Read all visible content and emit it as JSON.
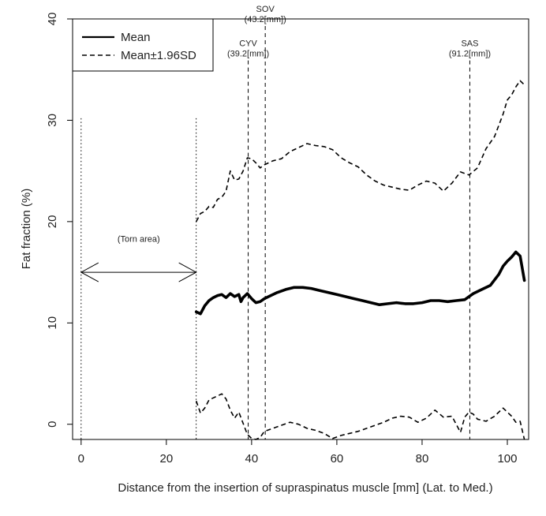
{
  "chart_data": {
    "type": "line",
    "title": "",
    "xlabel": "Distance from the insertion of supraspinatus muscle [mm] (Lat. to Med.)",
    "ylabel": "Fat fraction (%)",
    "xlim": [
      -2,
      105
    ],
    "ylim": [
      -1.5,
      40
    ],
    "xticks": [
      0,
      20,
      40,
      60,
      80,
      100
    ],
    "yticks": [
      0,
      10,
      20,
      30,
      40
    ],
    "grid": false,
    "legend": {
      "position": "top-left",
      "entries": [
        {
          "label": "Mean",
          "style": "solid"
        },
        {
          "label": "Mean±1.96SD",
          "style": "dashed"
        }
      ]
    },
    "series": [
      {
        "name": "Mean",
        "style": "solid",
        "x": [
          27,
          28,
          29,
          30,
          31,
          32,
          33,
          34,
          35,
          36,
          37,
          37.5,
          38,
          39,
          40,
          41,
          42,
          43,
          44,
          46,
          48,
          50,
          52,
          54,
          56,
          58,
          60,
          62,
          64,
          66,
          68,
          70,
          72,
          74,
          76,
          78,
          80,
          82,
          84,
          86,
          88,
          90,
          92,
          94,
          96,
          98,
          99,
          100,
          101,
          102,
          103,
          104
        ],
        "values": [
          11.1,
          10.9,
          11.7,
          12.2,
          12.5,
          12.7,
          12.8,
          12.5,
          12.9,
          12.6,
          12.8,
          12.1,
          12.5,
          12.9,
          12.4,
          12.0,
          12.1,
          12.4,
          12.6,
          13.0,
          13.3,
          13.5,
          13.5,
          13.4,
          13.2,
          13.0,
          12.8,
          12.6,
          12.4,
          12.2,
          12.0,
          11.8,
          11.9,
          12.0,
          11.9,
          11.9,
          12.0,
          12.2,
          12.2,
          12.1,
          12.2,
          12.3,
          12.9,
          13.3,
          13.7,
          14.8,
          15.6,
          16.1,
          16.5,
          17.0,
          16.6,
          14.2
        ]
      },
      {
        "name": "Mean+1.96SD",
        "style": "dashed",
        "x": [
          27,
          28,
          29,
          30,
          31,
          32,
          33,
          34,
          35,
          36,
          37,
          38,
          39,
          40,
          41,
          42,
          43,
          45,
          47,
          49,
          51,
          53,
          55,
          57,
          59,
          61,
          63,
          65,
          67,
          69,
          71,
          73,
          75,
          77,
          79,
          81,
          83,
          85,
          87,
          89,
          91,
          93,
          95,
          97,
          99,
          100,
          101,
          102,
          103,
          104
        ],
        "values": [
          20.0,
          20.8,
          21.0,
          21.5,
          21.4,
          22.2,
          22.4,
          23.0,
          25.0,
          24.1,
          24.2,
          25.0,
          26.3,
          26.2,
          25.8,
          25.3,
          25.6,
          26.0,
          26.2,
          26.9,
          27.3,
          27.7,
          27.5,
          27.4,
          27.1,
          26.3,
          25.8,
          25.4,
          24.6,
          24.0,
          23.6,
          23.4,
          23.2,
          23.1,
          23.6,
          24.0,
          23.8,
          23.0,
          23.8,
          24.9,
          24.6,
          25.3,
          27.2,
          28.4,
          30.6,
          32.0,
          32.5,
          33.3,
          33.9,
          33.5
        ]
      },
      {
        "name": "Mean-1.96SD",
        "style": "dashed",
        "x": [
          27,
          28,
          29,
          30,
          31,
          32,
          33,
          34,
          35,
          36,
          37,
          38,
          39,
          40,
          41,
          42,
          43,
          45,
          47,
          49,
          51,
          53,
          55,
          57,
          59,
          61,
          63,
          65,
          67,
          69,
          71,
          73,
          75,
          77,
          79,
          81,
          83,
          85,
          87,
          89,
          90,
          91,
          92,
          93,
          95,
          97,
          99,
          101,
          102,
          103,
          104
        ],
        "values": [
          2.3,
          1.1,
          1.6,
          2.4,
          2.6,
          2.8,
          3.0,
          2.5,
          1.4,
          0.6,
          1.2,
          0.1,
          -1.0,
          -1.4,
          -1.5,
          -1.3,
          -0.7,
          -0.4,
          -0.1,
          0.2,
          0.0,
          -0.4,
          -0.6,
          -0.9,
          -1.4,
          -1.1,
          -0.9,
          -0.7,
          -0.4,
          -0.1,
          0.2,
          0.6,
          0.8,
          0.7,
          0.2,
          0.6,
          1.4,
          0.7,
          0.8,
          -0.8,
          0.7,
          1.2,
          1.0,
          0.5,
          0.3,
          0.8,
          1.6,
          0.8,
          0.2,
          0.3,
          -1.5
        ]
      }
    ],
    "vlines": [
      {
        "x": 0,
        "style": "dotted",
        "y_top": 30.2
      },
      {
        "x": 27,
        "style": "dotted",
        "y_top": 30.2
      },
      {
        "x": 39.2,
        "style": "dashed",
        "y_top": 35.9,
        "label": "CYV",
        "sublabel": "(39.2[mm])"
      },
      {
        "x": 43.2,
        "style": "dashed",
        "y_top": 39.3,
        "label": "SOV",
        "sublabel": "(43.2[mm])"
      },
      {
        "x": 91.2,
        "style": "dashed",
        "y_top": 35.9,
        "label": "SAS",
        "sublabel": "(91.2[mm])"
      }
    ],
    "annotations": [
      {
        "type": "double-arrow",
        "x_start": 0,
        "x_end": 27,
        "y": 15.0
      },
      {
        "type": "text",
        "text": "(Torn area)",
        "x": 13.5,
        "y": 18.0
      }
    ]
  }
}
